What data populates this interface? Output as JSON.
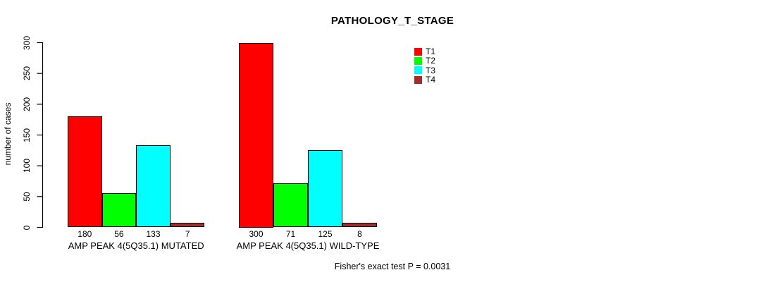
{
  "chart_data": {
    "type": "bar",
    "title": "PATHOLOGY_T_STAGE",
    "ylabel": "number of cases",
    "xlabel": "",
    "ylim": [
      0,
      300
    ],
    "yticks": [
      0,
      50,
      100,
      150,
      200,
      250,
      300
    ],
    "grid": false,
    "legend_position": "top-right",
    "categories": [
      "AMP PEAK 4(5Q35.1) MUTATED",
      "AMP PEAK 4(5Q35.1) WILD-TYPE"
    ],
    "series": [
      {
        "name": "T1",
        "color": "#ff0000",
        "values": [
          180,
          300
        ]
      },
      {
        "name": "T2",
        "color": "#00ff00",
        "values": [
          56,
          71
        ]
      },
      {
        "name": "T3",
        "color": "#00ffff",
        "values": [
          133,
          125
        ]
      },
      {
        "name": "T4",
        "color": "#a52a2a",
        "values": [
          7,
          8
        ]
      }
    ],
    "bar_value_labels": [
      [
        180,
        56,
        133,
        7
      ],
      [
        300,
        71,
        125,
        8
      ]
    ],
    "footnote": "Fisher's exact test P = 0.0031",
    "axis_color": "#000000",
    "text_color": "#000000",
    "background_color": "#ffffff"
  }
}
